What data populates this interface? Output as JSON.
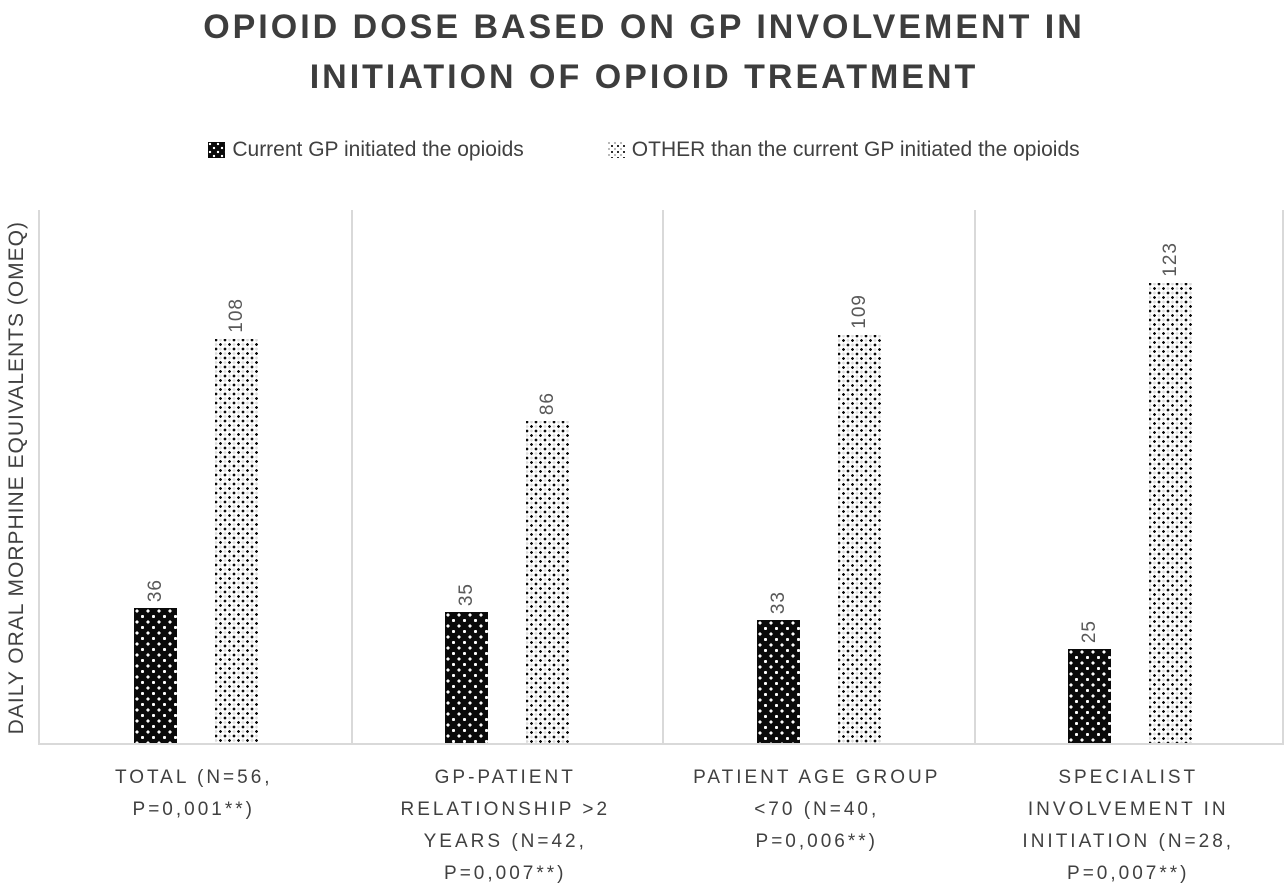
{
  "title": {
    "text": "OPIOID DOSE BASED ON GP INVOLVEMENT IN INITIATION OF OPIOID TREATMENT",
    "lines": [
      "OPIOID DOSE BASED ON GP INVOLVEMENT IN",
      "INITIATION OF OPIOID TREATMENT"
    ]
  },
  "legend": {
    "position": "top",
    "items": [
      {
        "label": "Current GP initiated the opioids",
        "swatch": "black-square-with-white-dots"
      },
      {
        "label": "OTHER than the current GP initiated the opioids",
        "swatch": "white-square-with-black-dots"
      }
    ]
  },
  "colors": {
    "title_text": "#3d3d3d",
    "label_text": "#404040",
    "value_label_text": "#595959",
    "axis_line": "#d9d9d9",
    "series1_fill": "#0a0a0a",
    "series2_fill": "#ffffff"
  },
  "chart_data": {
    "type": "bar",
    "title": "OPIOID DOSE BASED ON GP INVOLVEMENT IN INITIATION OF OPIOID TREATMENT",
    "ylabel": "DAILY ORAL MORPHINE EQUIVALENTS (OMEQ)",
    "xlabel": "",
    "ylim": [
      0,
      143
    ],
    "grid": false,
    "legend_position": "top",
    "data_labels": true,
    "data_labels_rotated": true,
    "categories": [
      "TOTAL (N=56, P=0,001**)",
      "GP-PATIENT RELATIONSHIP >2 YEARS (N=42, P=0,007**)",
      "PATIENT AGE GROUP <70 (N=40, P=0,006**)",
      "SPECIALIST INVOLVEMENT IN INITIATION (N=28, P=0,007**)"
    ],
    "category_lines": [
      [
        "TOTAL (N=56,",
        "P=0,001**)"
      ],
      [
        "GP-PATIENT",
        "RELATIONSHIP >2",
        "YEARS (N=42,",
        "P=0,007**)"
      ],
      [
        "PATIENT AGE GROUP",
        "<70 (N=40,",
        "P=0,006**)"
      ],
      [
        "SPECIALIST",
        "INVOLVEMENT IN",
        "INITIATION (N=28,",
        "P=0,007**)"
      ]
    ],
    "series": [
      {
        "name": "Current GP initiated the opioids",
        "pattern": "white-dots-on-black",
        "values": [
          36,
          35,
          33,
          25
        ]
      },
      {
        "name": "OTHER than the current GP initiated the opioids",
        "pattern": "black-dots-on-white",
        "values": [
          108,
          86,
          109,
          123
        ]
      }
    ]
  }
}
